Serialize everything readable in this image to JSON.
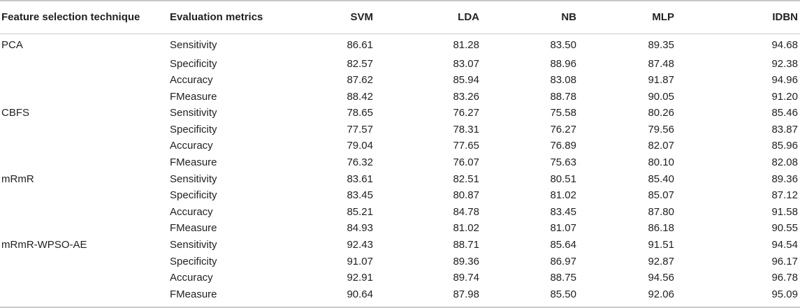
{
  "table": {
    "headers": [
      "Feature selection technique",
      "Evaluation metrics",
      "SVM",
      "LDA",
      "NB",
      "MLP",
      "IDBN"
    ],
    "rows": [
      {
        "technique": "PCA",
        "metric": "Sensitivity",
        "values": [
          "86.61",
          "81.28",
          "83.50",
          "89.35",
          "94.68"
        ]
      },
      {
        "technique": "",
        "metric": "Specificity",
        "values": [
          "82.57",
          "83.07",
          "88.96",
          "87.48",
          "92.38"
        ]
      },
      {
        "technique": "",
        "metric": "Accuracy",
        "values": [
          "87.62",
          "85.94",
          "83.08",
          "91.87",
          "94.96"
        ]
      },
      {
        "technique": "",
        "metric": "FMeasure",
        "values": [
          "88.42",
          "83.26",
          "88.78",
          "90.05",
          "91.20"
        ]
      },
      {
        "technique": "CBFS",
        "metric": "Sensitivity",
        "values": [
          "78.65",
          "76.27",
          "75.58",
          "80.26",
          "85.46"
        ]
      },
      {
        "technique": "",
        "metric": "Specificity",
        "values": [
          "77.57",
          "78.31",
          "76.27",
          "79.56",
          "83.87"
        ]
      },
      {
        "technique": "",
        "metric": "Accuracy",
        "values": [
          "79.04",
          "77.65",
          "76.89",
          "82.07",
          "85.96"
        ]
      },
      {
        "technique": "",
        "metric": "FMeasure",
        "values": [
          "76.32",
          "76.07",
          "75.63",
          "80.10",
          "82.08"
        ]
      },
      {
        "technique": "mRmR",
        "metric": "Sensitivity",
        "values": [
          "83.61",
          "82.51",
          "80.51",
          "85.40",
          "89.36"
        ]
      },
      {
        "technique": "",
        "metric": "Specificity",
        "values": [
          "83.45",
          "80.87",
          "81.02",
          "85.07",
          "87.12"
        ]
      },
      {
        "technique": "",
        "metric": "Accuracy",
        "values": [
          "85.21",
          "84.78",
          "83.45",
          "87.80",
          "91.58"
        ]
      },
      {
        "technique": "",
        "metric": "FMeasure",
        "values": [
          "84.93",
          "81.02",
          "81.07",
          "86.18",
          "90.55"
        ]
      },
      {
        "technique": "mRmR-WPSO-AE",
        "metric": "Sensitivity",
        "values": [
          "92.43",
          "88.71",
          "85.64",
          "91.51",
          "94.54"
        ]
      },
      {
        "technique": "",
        "metric": "Specificity",
        "values": [
          "91.07",
          "89.36",
          "86.97",
          "92.87",
          "96.17"
        ]
      },
      {
        "technique": "",
        "metric": "Accuracy",
        "values": [
          "92.91",
          "89.74",
          "88.75",
          "94.56",
          "96.78"
        ]
      },
      {
        "technique": "",
        "metric": "FMeasure",
        "values": [
          "90.64",
          "87.98",
          "85.50",
          "92.06",
          "95.09"
        ]
      }
    ]
  }
}
